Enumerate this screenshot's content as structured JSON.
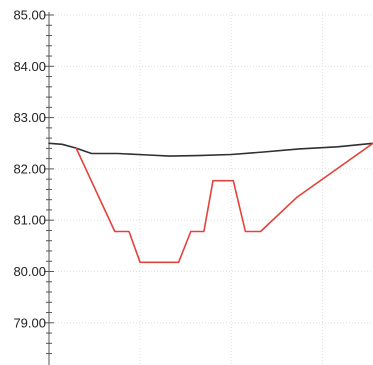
{
  "chart_data": {
    "type": "line",
    "title": "",
    "xlabel": "",
    "ylabel": "",
    "ylim": [
      78.3,
      85.0
    ],
    "xlim": [
      0,
      32
    ],
    "y_ticks": [
      {
        "value": 85.0,
        "label": "85.00"
      },
      {
        "value": 84.0,
        "label": "84.00"
      },
      {
        "value": 83.0,
        "label": "83.00"
      },
      {
        "value": 82.0,
        "label": "82.00"
      },
      {
        "value": 81.0,
        "label": "81.00"
      },
      {
        "value": 80.0,
        "label": "80.00"
      },
      {
        "value": 79.0,
        "label": "79.00"
      }
    ],
    "y_minor_step": 0.2,
    "x_gridlines": [
      9,
      18,
      27
    ],
    "grid": true,
    "legend": "none",
    "series": [
      {
        "color": "#303030",
        "points": [
          [
            0,
            82.5
          ],
          [
            1.3,
            82.48
          ],
          [
            2.6,
            82.41
          ],
          [
            4.2,
            82.3
          ],
          [
            6.8,
            82.3
          ],
          [
            9.8,
            82.27
          ],
          [
            11.9,
            82.25
          ],
          [
            14.7,
            82.26
          ],
          [
            18.0,
            82.28
          ],
          [
            21.2,
            82.33
          ],
          [
            24.7,
            82.39
          ],
          [
            28.5,
            82.43
          ],
          [
            32.0,
            82.5
          ]
        ]
      },
      {
        "color": "#e2433b",
        "points": [
          [
            2.7,
            82.4
          ],
          [
            6.5,
            80.78
          ],
          [
            7.9,
            80.78
          ],
          [
            9.0,
            80.18
          ],
          [
            12.8,
            80.18
          ],
          [
            14.0,
            80.78
          ],
          [
            15.3,
            80.78
          ],
          [
            16.2,
            81.77
          ],
          [
            18.2,
            81.77
          ],
          [
            19.4,
            80.78
          ],
          [
            20.9,
            80.78
          ],
          [
            24.5,
            81.45
          ],
          [
            32.0,
            82.5
          ]
        ]
      }
    ]
  }
}
